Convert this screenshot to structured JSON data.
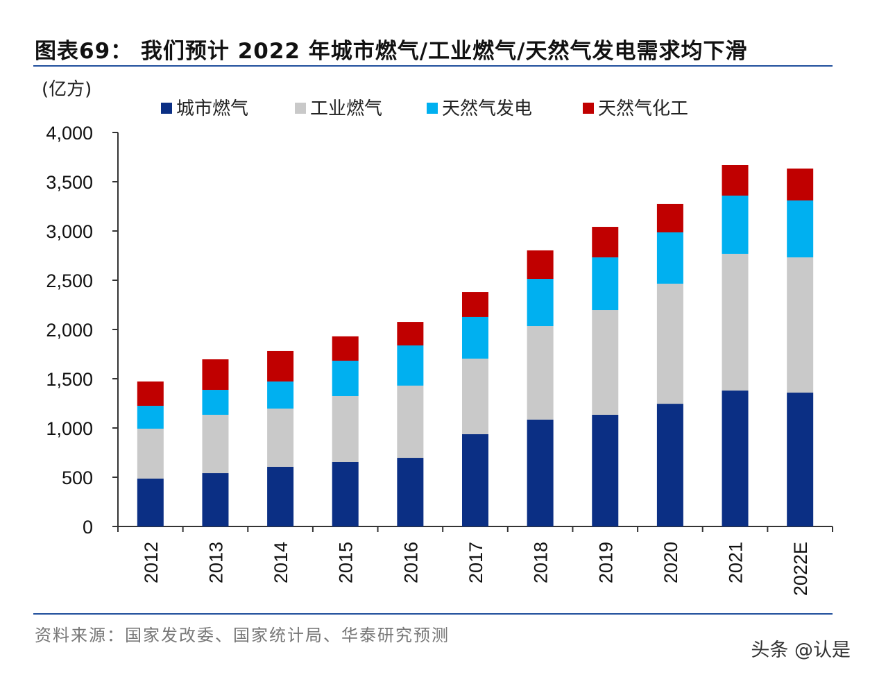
{
  "title": "图表69：  我们预计 2022 年城市燃气/工业燃气/天然气发电需求均下滑",
  "source": "资料来源：国家发改委、国家统计局、华泰研究预测",
  "watermark": "头条 @认是",
  "chart_data": {
    "type": "bar",
    "stacked": true,
    "ylabel": "(亿方)",
    "ylim": [
      0,
      4000
    ],
    "yticks": [
      0,
      500,
      1000,
      1500,
      2000,
      2500,
      3000,
      3500,
      4000
    ],
    "ytick_labels": [
      "0",
      "500",
      "1,000",
      "1,500",
      "2,000",
      "2,500",
      "3,000",
      "3,500",
      "4,000"
    ],
    "legend_position": "top",
    "grid": false,
    "categories": [
      "2012",
      "2013",
      "2014",
      "2015",
      "2016",
      "2017",
      "2018",
      "2019",
      "2020",
      "2021",
      "2022E"
    ],
    "series": [
      {
        "name": "城市燃气",
        "color": "#0b2f84",
        "values": [
          486,
          542,
          606,
          655,
          697,
          937,
          1085,
          1134,
          1246,
          1380,
          1359
        ]
      },
      {
        "name": "工业燃气",
        "color": "#c9c9c9",
        "values": [
          507,
          592,
          591,
          669,
          733,
          767,
          950,
          1063,
          1219,
          1388,
          1373
        ]
      },
      {
        "name": "天然气发电",
        "color": "#00b0f0",
        "values": [
          232,
          253,
          275,
          359,
          408,
          423,
          479,
          535,
          521,
          591,
          578
        ]
      },
      {
        "name": "天然气化工",
        "color": "#c00000",
        "values": [
          247,
          310,
          310,
          247,
          239,
          253,
          289,
          310,
          289,
          310,
          324
        ]
      }
    ]
  }
}
